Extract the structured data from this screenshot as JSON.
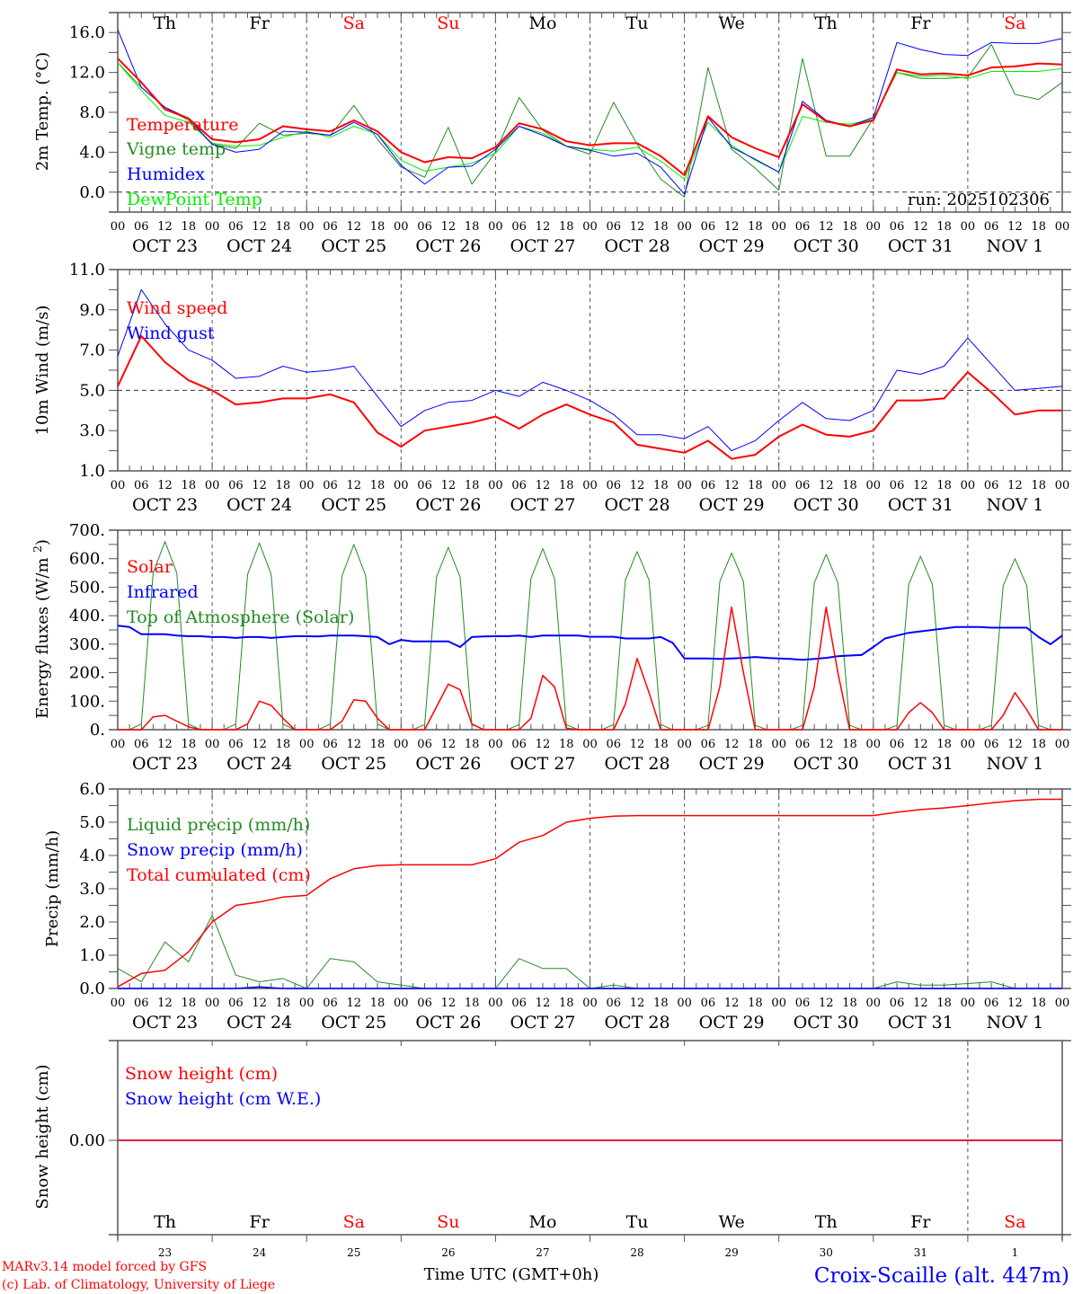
{
  "footer": {
    "model_line": "MARv3.14 model forced by GFS",
    "copyright_line": "(c) Lab. of Climatology, University of Liege",
    "time_axis_label": "Time UTC (GMT+0h)",
    "station_label": "Croix-Scaille (alt. 447m)"
  },
  "run_label": "run: 2025102306",
  "colors": {
    "red": "#ff0000",
    "green": "#228b22",
    "blue": "#0000ff",
    "lightgreen": "#00ee00",
    "weekend": "#ff0000",
    "weekday": "#000000"
  },
  "day_names": [
    "Th",
    "Fr",
    "Sa",
    "Su",
    "Mo",
    "Tu",
    "We",
    "Th",
    "Fr",
    "Sa"
  ],
  "weekend_flags": [
    false,
    false,
    true,
    true,
    false,
    false,
    false,
    false,
    false,
    true
  ],
  "date_labels": [
    "OCT 23",
    "OCT 24",
    "OCT 25",
    "OCT 26",
    "OCT 27",
    "OCT 28",
    "OCT 29",
    "OCT 30",
    "OCT 31",
    "NOV  1"
  ],
  "day_numbers": [
    "23",
    "24",
    "25",
    "26",
    "27",
    "28",
    "29",
    "30",
    "31",
    "1"
  ],
  "hour_labels": [
    "00",
    "06",
    "12",
    "18"
  ],
  "hour_end_label": "00",
  "chart_data": [
    {
      "type": "line",
      "id": "temp",
      "title": "",
      "ylabel": "2m Temp. (°C)",
      "ylim": [
        -2,
        18
      ],
      "yticks": [
        "0.0",
        "4.0",
        "8.0",
        "12.0",
        "16.0"
      ],
      "ytick_values": [
        0,
        4,
        8,
        12,
        16
      ],
      "ref_line": 0,
      "x_step_hours": 6,
      "series": [
        {
          "name": "Temperature",
          "color": "#ff0000",
          "width": 2,
          "values": [
            13.4,
            11.0,
            8.3,
            7.4,
            5.3,
            5.0,
            5.3,
            6.6,
            6.3,
            6.1,
            7.2,
            6.1,
            4.0,
            3.0,
            3.5,
            3.4,
            4.5,
            6.9,
            6.3,
            5.1,
            4.7,
            4.9,
            4.9,
            3.6,
            1.7,
            7.6,
            5.5,
            4.4,
            3.5,
            8.8,
            7.1,
            6.6,
            7.2,
            12.3,
            11.8,
            11.9,
            11.7,
            12.5,
            12.6,
            12.9,
            12.8
          ]
        },
        {
          "name": "Vigne temp",
          "color": "#228b22",
          "width": 1,
          "values": [
            13.0,
            10.5,
            8.5,
            7.2,
            4.8,
            4.4,
            6.9,
            5.7,
            5.9,
            5.7,
            8.7,
            5.3,
            2.5,
            1.5,
            6.5,
            0.8,
            4.0,
            9.5,
            6.2,
            4.6,
            3.8,
            9.0,
            4.8,
            1.3,
            -0.5,
            12.5,
            4.3,
            2.4,
            0.2,
            13.4,
            3.6,
            3.6,
            7.4,
            12.0,
            11.4,
            11.4,
            11.5,
            14.8,
            9.8,
            9.3,
            11.0
          ]
        },
        {
          "name": "Humidex",
          "color": "#0000ff",
          "width": 1,
          "values": [
            16.3,
            10.5,
            8.5,
            7.4,
            4.8,
            4.0,
            4.3,
            6.1,
            6.0,
            5.7,
            7.0,
            5.8,
            2.7,
            0.8,
            2.5,
            2.6,
            4.3,
            6.6,
            5.7,
            4.6,
            4.2,
            3.6,
            3.9,
            2.5,
            -0.2,
            7.5,
            4.5,
            3.3,
            2.0,
            9.1,
            7.2,
            6.6,
            7.5,
            15.0,
            14.3,
            13.8,
            13.7,
            15.0,
            14.9,
            14.9,
            15.4
          ]
        },
        {
          "name": "DewPoint Temp",
          "color": "#00ee00",
          "width": 1,
          "values": [
            13.0,
            10.2,
            7.7,
            7.0,
            4.9,
            4.6,
            4.7,
            5.5,
            6.1,
            5.5,
            6.6,
            5.8,
            3.2,
            2.1,
            2.5,
            2.9,
            3.9,
            6.6,
            5.9,
            4.6,
            4.3,
            4.1,
            4.5,
            3.1,
            1.3,
            7.0,
            4.7,
            3.2,
            2.0,
            7.6,
            7.0,
            6.8,
            7.3,
            12.0,
            11.6,
            11.7,
            11.4,
            12.1,
            12.1,
            12.1,
            12.4
          ]
        }
      ]
    },
    {
      "type": "line",
      "id": "wind",
      "ylabel": "10m Wind (m/s)",
      "ylim": [
        1,
        11
      ],
      "yticks": [
        "1.0",
        "3.0",
        "5.0",
        "7.0",
        "9.0",
        "11.0"
      ],
      "ytick_values": [
        1,
        3,
        5,
        7,
        9,
        11
      ],
      "ref_line": 5,
      "x_step_hours": 6,
      "series": [
        {
          "name": "Wind speed",
          "color": "#ff0000",
          "width": 2,
          "values": [
            5.2,
            7.7,
            6.4,
            5.5,
            5.0,
            4.3,
            4.4,
            4.6,
            4.6,
            4.8,
            4.4,
            2.9,
            2.2,
            3.0,
            3.2,
            3.4,
            3.7,
            3.1,
            3.8,
            4.3,
            3.8,
            3.4,
            2.3,
            2.1,
            1.9,
            2.5,
            1.6,
            1.8,
            2.7,
            3.3,
            2.8,
            2.7,
            3.0,
            4.5,
            4.5,
            4.6,
            5.9,
            4.9,
            3.8,
            4.0,
            4.0
          ]
        },
        {
          "name": "Wind gust",
          "color": "#0000ff",
          "width": 1,
          "values": [
            6.7,
            10.0,
            8.3,
            7.0,
            6.5,
            5.6,
            5.7,
            6.2,
            5.9,
            6.0,
            6.2,
            4.7,
            3.2,
            4.0,
            4.4,
            4.5,
            5.0,
            4.7,
            5.4,
            5.0,
            4.5,
            3.8,
            2.8,
            2.8,
            2.6,
            3.2,
            2.0,
            2.5,
            3.5,
            4.4,
            3.6,
            3.5,
            4.0,
            6.0,
            5.8,
            6.2,
            7.6,
            6.3,
            5.0,
            5.1,
            5.2
          ]
        }
      ]
    },
    {
      "type": "line",
      "id": "flux",
      "ylabel": "Energy fluxes (W/m2)",
      "ylim": [
        0,
        700
      ],
      "yticks": [
        "0.",
        "100.",
        "200.",
        "300.",
        "400.",
        "500.",
        "600.",
        "700."
      ],
      "ytick_values": [
        0,
        100,
        200,
        300,
        400,
        500,
        600,
        700
      ],
      "x_step_hours": 3,
      "series": [
        {
          "name": "Solar",
          "color": "#ff0000",
          "width": 1.5,
          "values": [
            0,
            0,
            0,
            45,
            50,
            30,
            10,
            0,
            0,
            0,
            0,
            20,
            100,
            85,
            40,
            0,
            0,
            0,
            0,
            30,
            105,
            100,
            40,
            0,
            0,
            0,
            0,
            80,
            160,
            140,
            20,
            0,
            0,
            0,
            0,
            40,
            190,
            150,
            5,
            0,
            0,
            0,
            0,
            90,
            250,
            130,
            0,
            0,
            0,
            0,
            0,
            150,
            430,
            200,
            0,
            0,
            0,
            0,
            0,
            150,
            430,
            200,
            0,
            0,
            0,
            0,
            0,
            60,
            95,
            60,
            0,
            0,
            0,
            0,
            0,
            50,
            130,
            70,
            0,
            0,
            0
          ]
        },
        {
          "name": "Infrared",
          "color": "#0000ff",
          "width": 2,
          "values": [
            365,
            360,
            335,
            335,
            335,
            330,
            328,
            328,
            325,
            325,
            322,
            325,
            325,
            322,
            325,
            328,
            328,
            327,
            330,
            330,
            330,
            328,
            325,
            300,
            315,
            310,
            310,
            310,
            310,
            290,
            325,
            327,
            328,
            328,
            330,
            325,
            330,
            330,
            330,
            330,
            326,
            326,
            326,
            320,
            320,
            320,
            325,
            305,
            250,
            250,
            250,
            248,
            250,
            252,
            255,
            252,
            250,
            248,
            245,
            248,
            252,
            258,
            260,
            262,
            290,
            320,
            330,
            340,
            345,
            350,
            355,
            360,
            360,
            360,
            358,
            358,
            358,
            358,
            325,
            300,
            330
          ]
        },
        {
          "name": "Top of Atmosphere (Solar)",
          "color": "#228b22",
          "width": 1,
          "values": [
            0,
            0,
            20,
            550,
            660,
            550,
            20,
            0,
            0,
            0,
            20,
            545,
            655,
            545,
            20,
            0,
            0,
            0,
            20,
            540,
            650,
            540,
            20,
            0,
            0,
            0,
            18,
            535,
            640,
            535,
            18,
            0,
            0,
            0,
            18,
            530,
            635,
            530,
            18,
            0,
            0,
            0,
            18,
            525,
            625,
            525,
            18,
            0,
            0,
            0,
            15,
            520,
            620,
            520,
            15,
            0,
            0,
            0,
            15,
            515,
            615,
            515,
            15,
            0,
            0,
            0,
            15,
            510,
            608,
            510,
            15,
            0,
            0,
            0,
            15,
            505,
            600,
            505,
            15,
            0,
            0
          ]
        }
      ]
    },
    {
      "type": "line",
      "id": "precip",
      "ylabel": "Precip (mm/h)",
      "ylim": [
        0,
        6
      ],
      "yticks": [
        "0.0",
        "1.0",
        "2.0",
        "3.0",
        "4.0",
        "5.0",
        "6.0"
      ],
      "ytick_values": [
        0,
        1,
        2,
        3,
        4,
        5,
        6
      ],
      "x_step_hours": 6,
      "series": [
        {
          "name": "Liquid precip (mm/h)",
          "color": "#228b22",
          "width": 1,
          "values": [
            0.6,
            0.2,
            1.4,
            0.8,
            2.2,
            0.4,
            0.2,
            0.3,
            0.0,
            0.9,
            0.8,
            0.2,
            0.1,
            0.0,
            0.0,
            0.0,
            0.0,
            0.9,
            0.6,
            0.6,
            0.0,
            0.1,
            0.0,
            0.0,
            0.0,
            0.0,
            0.0,
            0.0,
            0.0,
            0.0,
            0.0,
            0.0,
            0.0,
            0.2,
            0.1,
            0.1,
            0.15,
            0.2,
            0.0,
            0.0,
            0.0
          ]
        },
        {
          "name": "Snow precip (mm/h)",
          "color": "#0000ff",
          "width": 1.5,
          "values": [
            0,
            0,
            0,
            0,
            0,
            0,
            0.05,
            0,
            0,
            0,
            0,
            0,
            0,
            0,
            0,
            0,
            0,
            0,
            0,
            0,
            0,
            0,
            0,
            0,
            0,
            0,
            0,
            0,
            0,
            0,
            0,
            0,
            0,
            0,
            0,
            0,
            0,
            0,
            0,
            0,
            0
          ]
        },
        {
          "name": "Total cumulated (cm)",
          "color": "#ff0000",
          "width": 1.5,
          "values": [
            0.05,
            0.45,
            0.55,
            1.1,
            2.0,
            2.5,
            2.6,
            2.75,
            2.8,
            3.3,
            3.6,
            3.7,
            3.72,
            3.72,
            3.72,
            3.72,
            3.9,
            4.4,
            4.6,
            5.0,
            5.12,
            5.18,
            5.2,
            5.2,
            5.2,
            5.2,
            5.2,
            5.2,
            5.2,
            5.2,
            5.2,
            5.2,
            5.2,
            5.3,
            5.38,
            5.43,
            5.5,
            5.58,
            5.65,
            5.69,
            5.69
          ]
        }
      ]
    },
    {
      "type": "line",
      "id": "snow",
      "ylabel": "Snow height (cm)",
      "yticks": [
        "0.00"
      ],
      "ytick_values": [
        0
      ],
      "ylim": [
        -1,
        1
      ],
      "x_step_hours": 24,
      "series": [
        {
          "name": "Snow height (cm)",
          "color": "#ff0000",
          "width": 1.5,
          "values": [
            0,
            0,
            0,
            0,
            0,
            0,
            0,
            0,
            0,
            0,
            0
          ]
        },
        {
          "name": "Snow height (cm W.E.)",
          "color": "#0000ff",
          "width": 1.5,
          "values": [
            0,
            0,
            0,
            0,
            0,
            0,
            0,
            0,
            0,
            0,
            0
          ]
        }
      ]
    }
  ]
}
